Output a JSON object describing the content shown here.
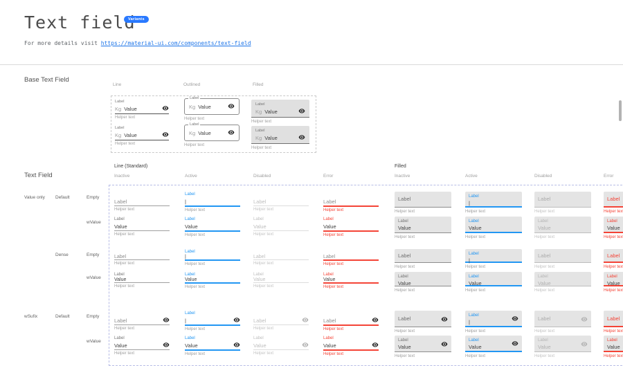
{
  "page": {
    "title": "Text field",
    "badge": "Variants",
    "details_prefix": "For more details visit ",
    "details_link": "https://material-ui.com/components/text-field"
  },
  "colors": {
    "accent_blue": "#2196f3",
    "error_red": "#f44336",
    "badge_blue": "#2979ff",
    "link_blue": "#1a73e8",
    "filled_bg": "#e4e4e4"
  },
  "base_section": {
    "title": "Base Text Field",
    "columns": [
      "Line",
      "Outlined",
      "Filled"
    ],
    "field": {
      "label": "Label",
      "prefix": "Kg",
      "value": "Value",
      "helper": "Helper text"
    }
  },
  "matrix_section": {
    "title": "Text Field",
    "groups": [
      {
        "label": "Line (Standard)",
        "states": [
          "Inactive",
          "Active",
          "Disabled",
          "Error"
        ]
      },
      {
        "label": "Filled",
        "states": [
          "Inactive",
          "Active",
          "Disabled",
          "Error"
        ]
      }
    ],
    "strings": {
      "label": "Label",
      "value": "Value",
      "helper": "Helper text",
      "cursor": "|"
    },
    "rows": [
      {
        "labels": [
          "Value only",
          "Default",
          "Empty"
        ],
        "mode": "empty",
        "dense": false,
        "sufix": false
      },
      {
        "labels": [
          "",
          "",
          "wValue"
        ],
        "mode": "value",
        "dense": false,
        "sufix": false
      },
      {
        "labels": [
          "",
          "Dense",
          "Empty"
        ],
        "mode": "empty",
        "dense": true,
        "sufix": false
      },
      {
        "labels": [
          "",
          "",
          "wValue"
        ],
        "mode": "value",
        "dense": true,
        "sufix": false
      },
      {
        "labels": [
          "wSufix",
          "Default",
          "Empty"
        ],
        "mode": "empty",
        "dense": false,
        "sufix": true
      },
      {
        "labels": [
          "",
          "",
          "wValue"
        ],
        "mode": "value",
        "dense": false,
        "sufix": true
      }
    ]
  }
}
